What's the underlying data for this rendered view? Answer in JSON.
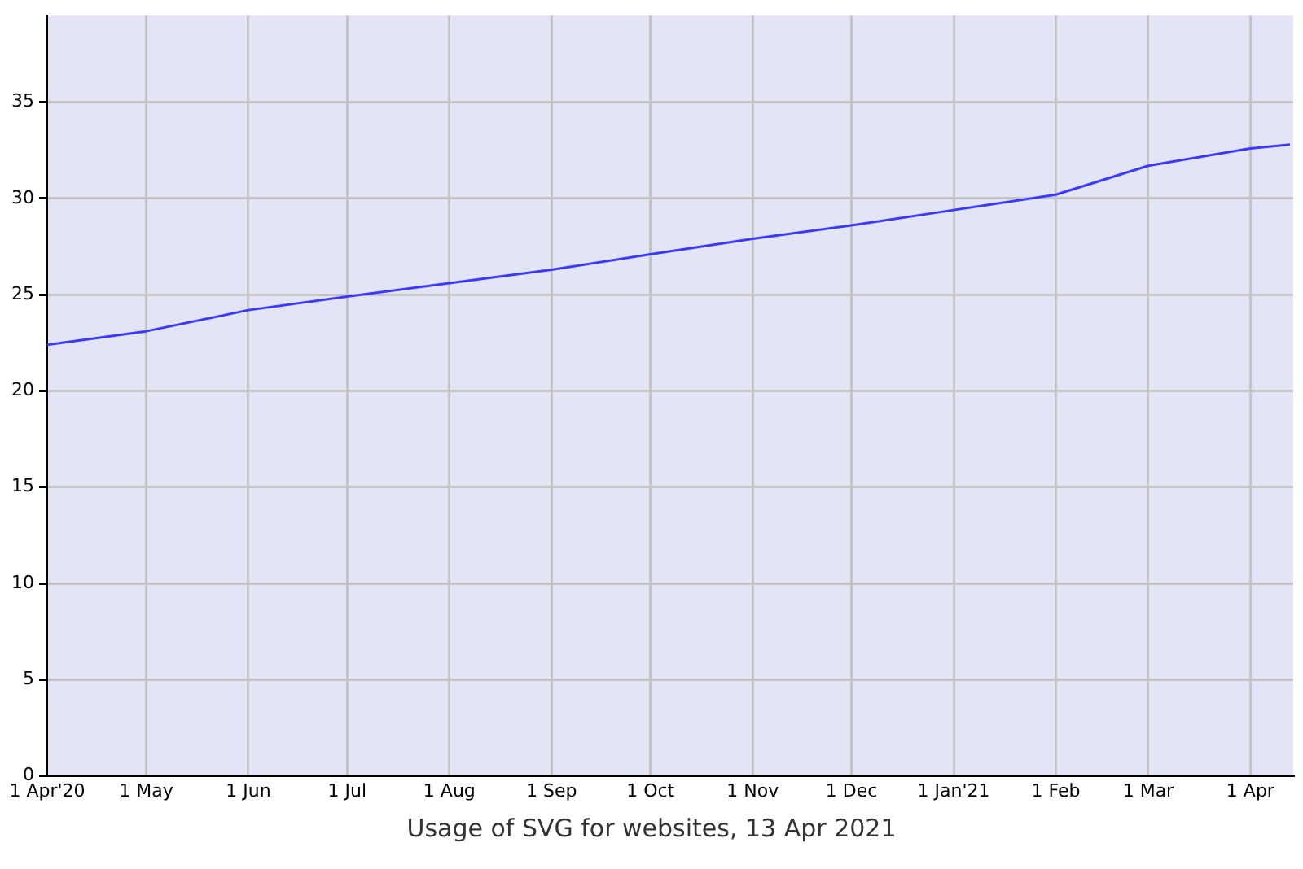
{
  "chart_data": {
    "type": "line",
    "annotations": [
      "Usage of SVG for websites, 13 Apr 2021"
    ],
    "x": [
      "2020-04-01",
      "2020-05-01",
      "2020-06-01",
      "2020-07-01",
      "2020-08-01",
      "2020-09-01",
      "2020-10-01",
      "2020-11-01",
      "2020-12-01",
      "2021-01-01",
      "2021-02-01",
      "2021-03-01",
      "2021-04-01",
      "2021-04-13"
    ],
    "series": [
      {
        "color": "#3a3aff",
        "values": [
          22.4,
          23.1,
          24.2,
          24.9,
          25.6,
          26.3,
          27.1,
          27.9,
          28.6,
          29.4,
          30.2,
          31.7,
          32.6,
          32.8
        ]
      }
    ],
    "xlim": [
      "2020-04-01",
      "2021-04-14"
    ],
    "xticks": [
      {
        "value": "2020-04-01",
        "label": "1 Apr'20"
      },
      {
        "value": "2020-05-01",
        "label": "1 May"
      },
      {
        "value": "2020-06-01",
        "label": "1 Jun"
      },
      {
        "value": "2020-07-01",
        "label": "1 Jul"
      },
      {
        "value": "2020-08-01",
        "label": "1 Aug"
      },
      {
        "value": "2020-09-01",
        "label": "1 Sep"
      },
      {
        "value": "2020-10-01",
        "label": "1 Oct"
      },
      {
        "value": "2020-11-01",
        "label": "1 Nov"
      },
      {
        "value": "2020-12-01",
        "label": "1 Dec"
      },
      {
        "value": "2021-01-01",
        "label": "1 Jan'21"
      },
      {
        "value": "2021-02-01",
        "label": "1 Feb"
      },
      {
        "value": "2021-03-01",
        "label": "1 Mar"
      },
      {
        "value": "2021-04-01",
        "label": "1 Apr"
      }
    ],
    "ylim": [
      0,
      39.5
    ],
    "yticks": [
      0,
      5,
      10,
      15,
      20,
      25,
      30,
      35
    ],
    "grid": true,
    "legend": false,
    "marker": "none",
    "line_style": "solid"
  }
}
